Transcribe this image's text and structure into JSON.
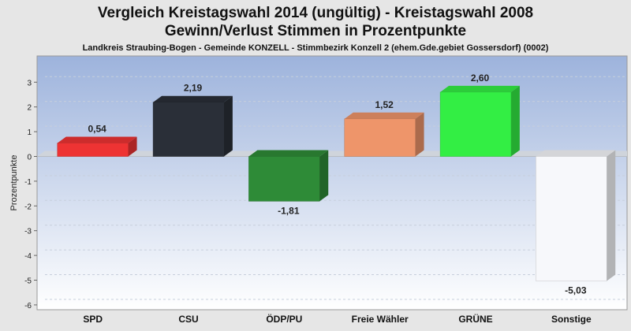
{
  "chart_data": {
    "type": "bar",
    "title": "Vergleich Kreistagswahl 2014 (ungültig) - Kreistagswahl 2008",
    "title2": "Gewinn/Verlust Stimmen in Prozentpunkte",
    "subtitle": "Landkreis Straubing-Bogen - Gemeinde KONZELL - Stimmbezirk Konzell 2 (ehem.Gde.gebiet Gossersdorf) (0002)",
    "ylabel": "Prozentpunkte",
    "ylim": [
      -6,
      3.5
    ],
    "yticks": [
      3,
      2,
      1,
      0,
      -1,
      -2,
      -3,
      -4,
      -5,
      -6
    ],
    "categories": [
      "SPD",
      "CSU",
      "ÖDP/PU",
      "Freie Wähler",
      "GRÜNE",
      "Sonstige"
    ],
    "values": [
      0.54,
      2.19,
      -1.81,
      1.52,
      2.6,
      -5.03
    ],
    "value_labels": [
      "0,54",
      "2,19",
      "-1,81",
      "1,52",
      "2,60",
      "-5,03"
    ],
    "colors": [
      "#ee3333",
      "#2a2f38",
      "#2e8b37",
      "#ee956a",
      "#33ee44",
      "#f7f8fb"
    ],
    "grid": true,
    "legend": "none"
  }
}
